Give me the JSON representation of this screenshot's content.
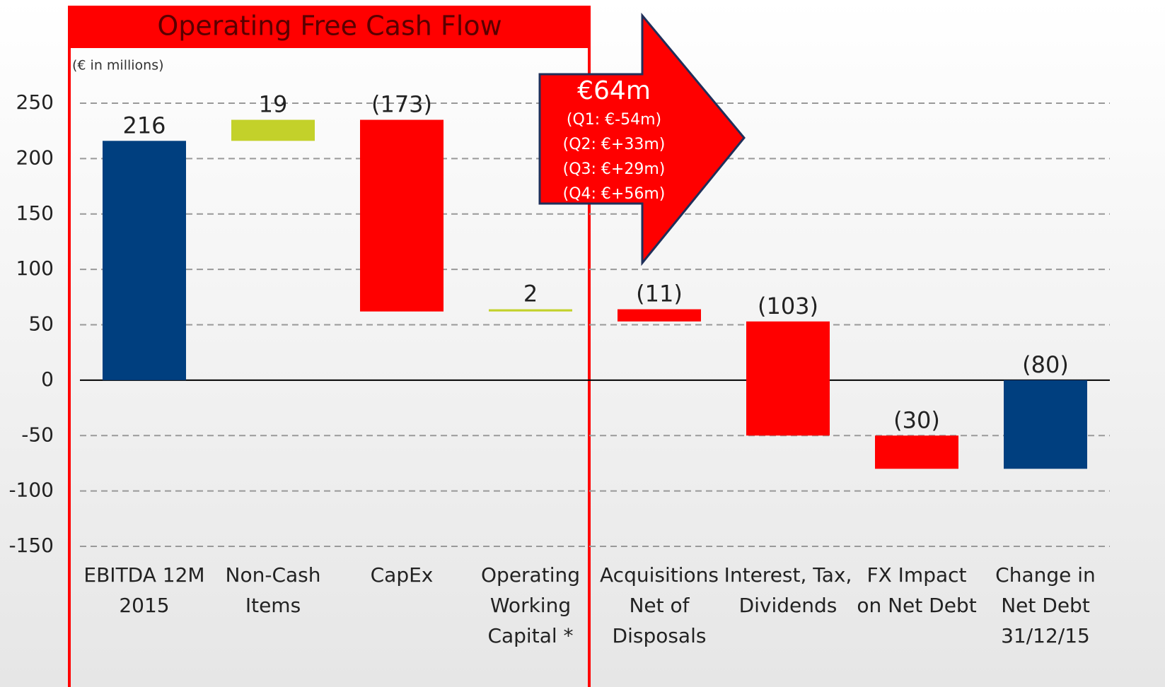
{
  "chart_data": {
    "type": "waterfall",
    "title": "Operating Free Cash Flow",
    "subtitle": "(€ in millions)",
    "categories": [
      "EBITDA 12M 2015",
      "Non-Cash Items",
      "CapEx",
      "Operating Working Capital *",
      "Acquisitions Net of Disposals",
      "Interest, Tax, Dividends",
      "FX Impact on Net Debt",
      "Change in Net Debt 31/12/15"
    ],
    "values": [
      216,
      19,
      -173,
      2,
      -11,
      -103,
      -30,
      -80
    ],
    "value_labels": [
      "216",
      "19",
      "(173)",
      "2",
      "(11)",
      "(103)",
      "(30)",
      "(80)"
    ],
    "measure": [
      "absolute",
      "relative",
      "relative",
      "relative",
      "relative",
      "relative",
      "relative",
      "absolute"
    ],
    "colors": [
      "#003f7f",
      "#c3d12a",
      "#ff0000",
      "#c3d12a",
      "#ff0000",
      "#ff0000",
      "#ff0000",
      "#003f7f"
    ],
    "ylim": [
      -150,
      250
    ],
    "yticks": [
      -150,
      -100,
      -50,
      0,
      50,
      100,
      150,
      200,
      250
    ],
    "grid": true,
    "annotation": [
      "€64m",
      "(Q1: €-54m)",
      "(Q2: €+33m)",
      "(Q3: €+29m)",
      "(Q4: €+56m)"
    ]
  }
}
